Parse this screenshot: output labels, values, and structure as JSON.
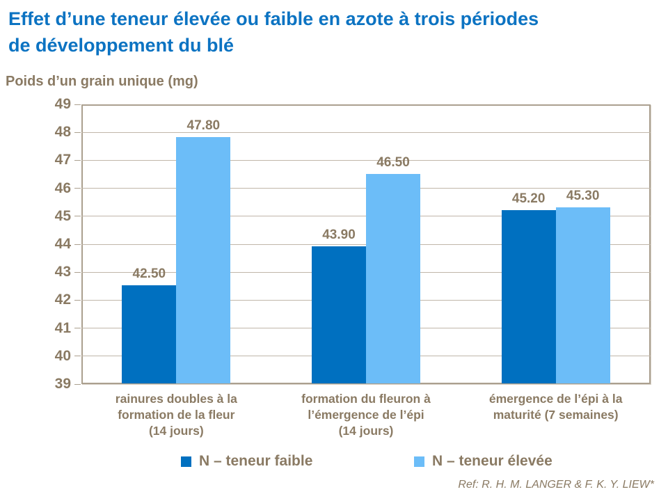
{
  "slide": {
    "title": "Effet d’une teneur élevée ou faible en azote à trois périodes\nde développement du blé",
    "reference": "Ref: R. H. M. LANGER & F. K. Y. LIEW*"
  },
  "colors": {
    "title_blue": "#0c73c2",
    "text_brown": "#8a7a63",
    "gridline": "#c0b6a9",
    "plot_border": "#aba08f",
    "series_low": "#0070c0",
    "series_high": "#6cbdf8"
  },
  "chart_data": {
    "type": "bar",
    "title": "Effet d’une teneur élevée ou faible en azote à trois périodes de développement du blé",
    "ylabel": "Poids d’un grain unique (mg)",
    "xlabel": "",
    "ylim": [
      39,
      49
    ],
    "ytick_step": 1,
    "grid": true,
    "legend_position": "bottom",
    "categories": [
      "rainures doubles à la\nformation de la fleur\n(14 jours)",
      "formation du fleuron à\nl’émergence de l’épi\n(14 jours)",
      "émergence de l’épi à la\nmaturité (7 semaines)"
    ],
    "series": [
      {
        "name": "N – teneur faible",
        "color": "#0070c0",
        "values": [
          42.5,
          43.9,
          45.2
        ],
        "labels": [
          "42.50",
          "43.90",
          "45.20"
        ]
      },
      {
        "name": "N – teneur élevée",
        "color": "#6cbdf8",
        "values": [
          47.8,
          46.5,
          45.3
        ],
        "labels": [
          "47.80",
          "46.50",
          "45.30"
        ]
      }
    ]
  }
}
